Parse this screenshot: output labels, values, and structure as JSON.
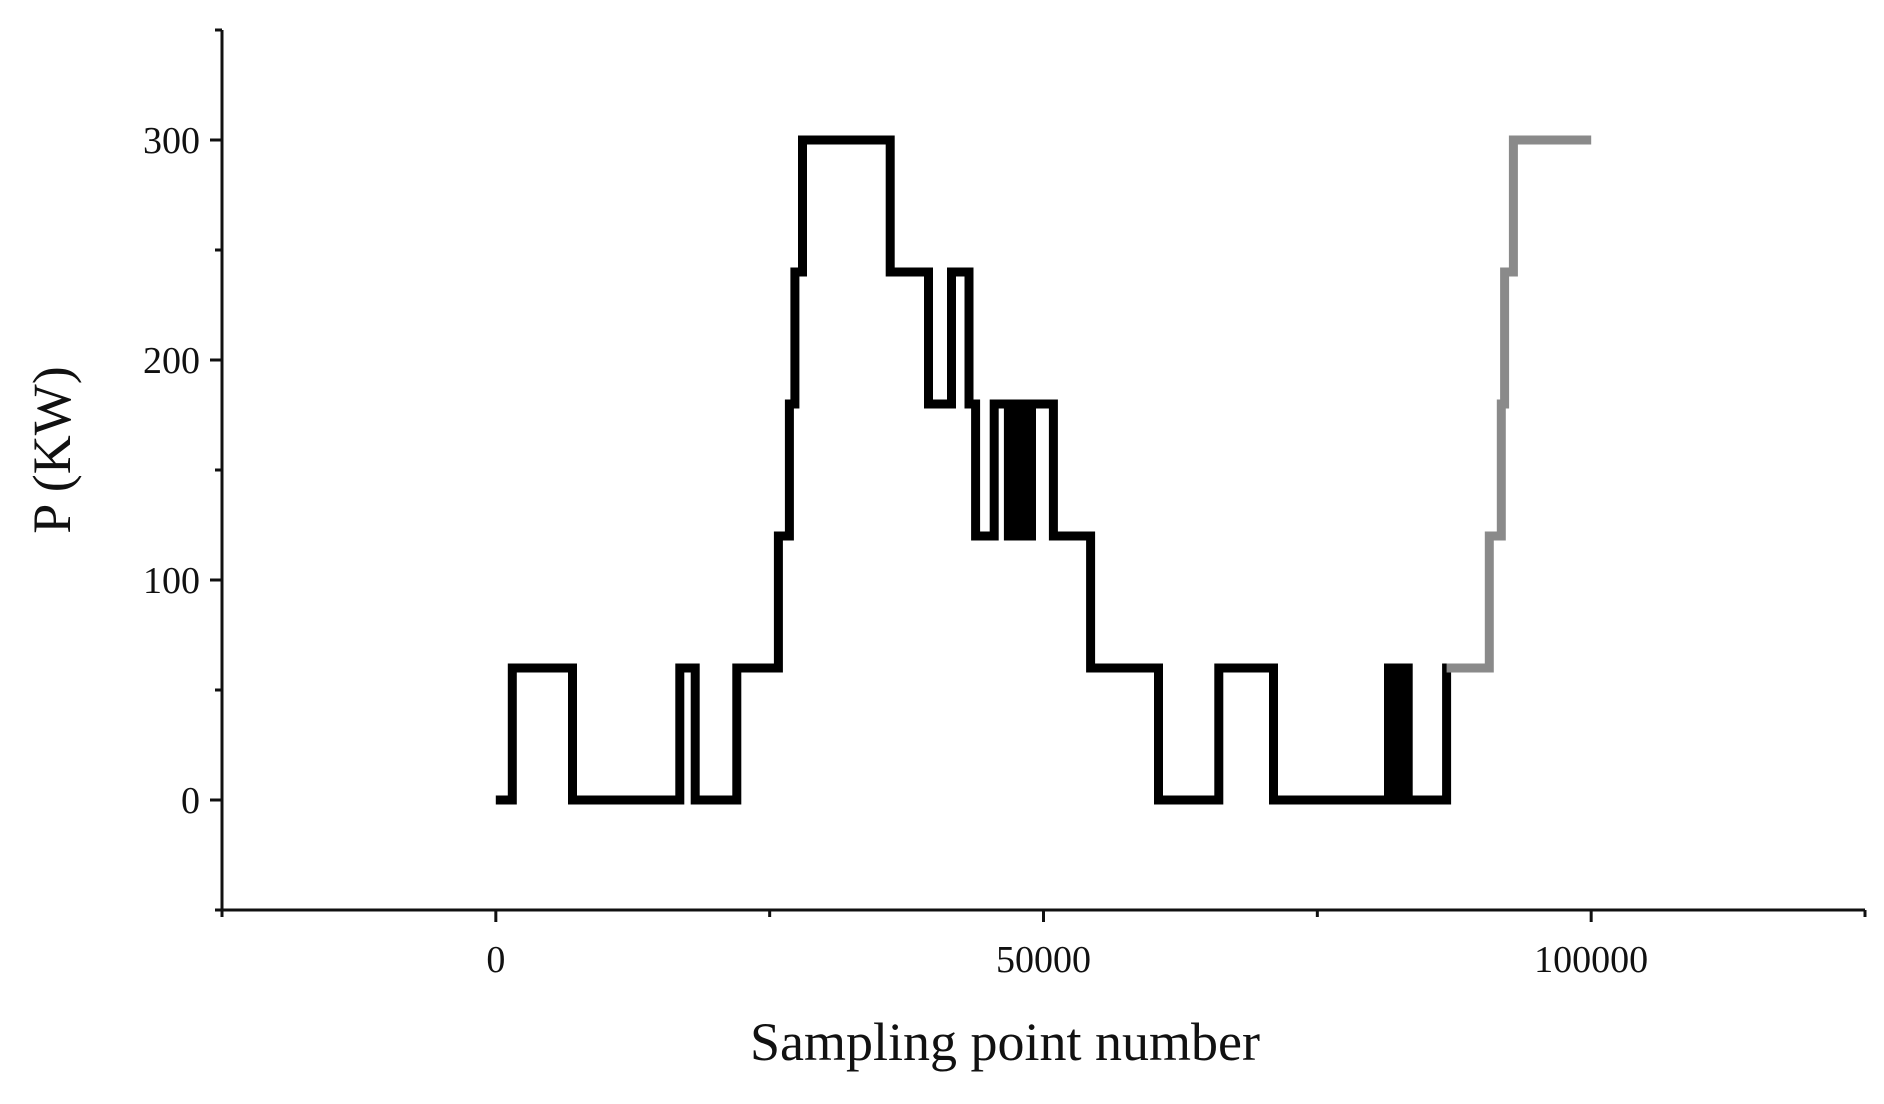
{
  "chart_data": {
    "type": "line",
    "title": "",
    "xlabel": "Sampling point number",
    "ylabel": "P (KW)",
    "xlim": [
      -25000,
      125000
    ],
    "ylim": [
      -50,
      350
    ],
    "x_ticks": [
      0,
      50000,
      100000
    ],
    "y_ticks": [
      0,
      100,
      200,
      300
    ],
    "x_minor_step": 25000,
    "y_minor_step": 50,
    "grid": false,
    "legend": "none",
    "series": [
      {
        "color": "#000000",
        "step": "post",
        "points": [
          [
            0,
            0
          ],
          [
            1500,
            60
          ],
          [
            7000,
            0
          ],
          [
            16800,
            60
          ],
          [
            18200,
            0
          ],
          [
            22000,
            60
          ],
          [
            25800,
            120
          ],
          [
            26800,
            180
          ],
          [
            27300,
            240
          ],
          [
            28000,
            300
          ],
          [
            36000,
            240
          ],
          [
            39500,
            180
          ],
          [
            41600,
            240
          ],
          [
            43200,
            180
          ],
          [
            43800,
            120
          ],
          [
            45500,
            180
          ],
          [
            46800,
            120
          ],
          [
            47200,
            180
          ],
          [
            47500,
            120
          ],
          [
            48100,
            180
          ],
          [
            48400,
            120
          ],
          [
            48900,
            180
          ],
          [
            50900,
            120
          ],
          [
            54300,
            60
          ],
          [
            60500,
            0
          ],
          [
            66000,
            60
          ],
          [
            71000,
            0
          ],
          [
            81500,
            60
          ],
          [
            82300,
            0
          ],
          [
            82700,
            60
          ],
          [
            83300,
            0
          ],
          [
            86800,
            60
          ]
        ],
        "end_x": 87000
      },
      {
        "color": "#8a8a8a",
        "step": "post",
        "points": [
          [
            86800,
            60
          ],
          [
            90700,
            120
          ],
          [
            91800,
            180
          ],
          [
            92100,
            240
          ],
          [
            92900,
            300
          ]
        ],
        "end_x": 100000
      }
    ]
  }
}
